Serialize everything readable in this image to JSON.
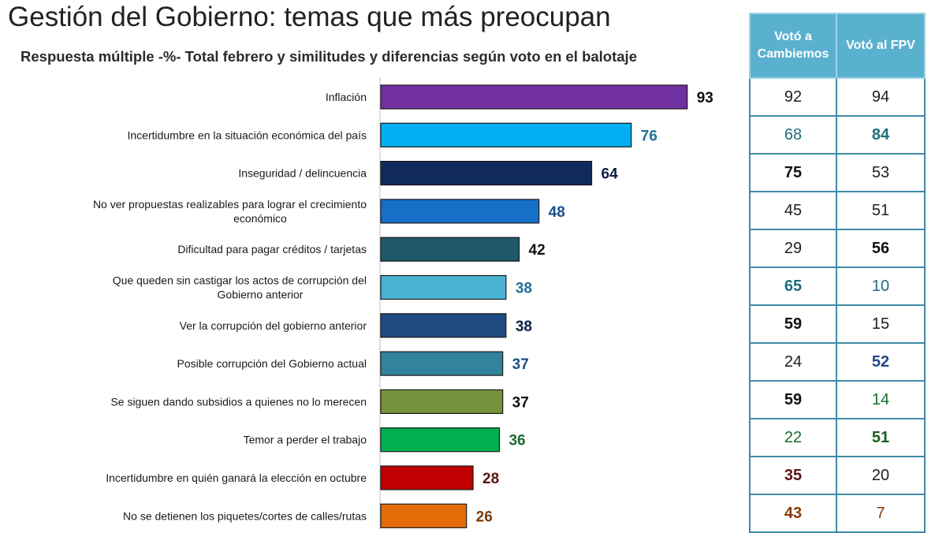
{
  "header": {
    "title": "Gestión del Gobierno: temas que más preocupan",
    "subtitle": "Respuesta múltiple -%- Total febrero y similitudes y diferencias según voto en el balotaje"
  },
  "chart_data": {
    "type": "bar",
    "orientation": "horizontal",
    "title": "Gestión del Gobierno: temas que más preocupan",
    "subtitle": "Respuesta múltiple -%- Total febrero y similitudes y diferencias según voto en el balotaje",
    "xlim": [
      0,
      100
    ],
    "categories": [
      [
        "Inflación"
      ],
      [
        "Incertidumbre en la situación económica del país"
      ],
      [
        "Inseguridad / delincuencia"
      ],
      [
        "No ver propuestas realizables para lograr el crecimiento",
        "económico"
      ],
      [
        "Dificultad para pagar créditos / tarjetas"
      ],
      [
        "Que queden sin castigar los actos de corrupción del",
        "Gobierno anterior"
      ],
      [
        "Ver la corrupción del gobierno anterior"
      ],
      [
        "Posible corrupción del Gobierno actual"
      ],
      [
        "Se siguen dando subsidios a quienes no lo merecen"
      ],
      [
        "Temor a perder el trabajo"
      ],
      [
        "Incertidumbre en quién ganará la elección en octubre"
      ],
      [
        "No se detienen los piquetes/cortes de calles/rutas"
      ]
    ],
    "values": [
      93,
      76,
      64,
      48,
      42,
      38,
      38,
      37,
      37,
      36,
      28,
      26
    ],
    "bar_colors": [
      "#7030a0",
      "#00b0f0",
      "#102a5c",
      "#1670c8",
      "#1f5868",
      "#4ab3d4",
      "#1f4a82",
      "#31849b",
      "#76923c",
      "#00b050",
      "#c00000",
      "#e36c09"
    ],
    "label_colors": [
      "#111111",
      "#1f6f96",
      "#0c1f44",
      "#1a4f8a",
      "#111111",
      "#1f6f96",
      "#0c1f44",
      "#1a4f8a",
      "#111111",
      "#1b6b2e",
      "#5a1414",
      "#7a3a0a"
    ],
    "comparison_table": {
      "headers": [
        "Votó a Cambiemos",
        "Votó al FPV"
      ],
      "cambiemos": [
        92,
        68,
        75,
        45,
        29,
        65,
        59,
        24,
        59,
        22,
        35,
        43
      ],
      "fpv": [
        94,
        84,
        53,
        51,
        56,
        10,
        15,
        52,
        14,
        51,
        20,
        7
      ],
      "cambiemos_colors": [
        "#1f1f1f",
        "#1f6f7e",
        "#111111",
        "#1f1f1f",
        "#1f1f1f",
        "#1f6f7e",
        "#111111",
        "#1f1f1f",
        "#111111",
        "#1b6b2e",
        "#5a1414",
        "#8a3a0a"
      ],
      "fpv_colors": [
        "#1f1f1f",
        "#1f6f7e",
        "#1f1f1f",
        "#1f1f1f",
        "#111111",
        "#1f6f7e",
        "#1f1f1f",
        "#1f4a82",
        "#1b6b2e",
        "#1b5e20",
        "#1f1f1f",
        "#8a3a0a"
      ],
      "cambiemos_bold": [
        false,
        false,
        true,
        false,
        false,
        true,
        true,
        false,
        true,
        false,
        true,
        true
      ],
      "fpv_bold": [
        false,
        true,
        false,
        false,
        true,
        false,
        false,
        true,
        false,
        true,
        false,
        false
      ]
    }
  }
}
